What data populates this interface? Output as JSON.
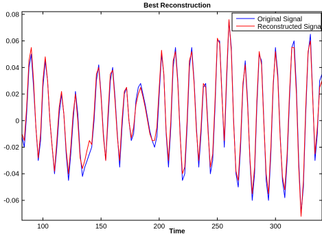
{
  "chart_data": {
    "type": "line",
    "title": "Best Reconstruction",
    "xlabel": "Time",
    "ylabel": "",
    "xlim": [
      82,
      340
    ],
    "ylim": [
      -0.075,
      0.082
    ],
    "xticks": [
      100,
      150,
      200,
      250,
      300
    ],
    "yticks": [
      -0.06,
      -0.04,
      -0.02,
      0,
      0.02,
      0.04,
      0.06,
      0.08
    ],
    "ytick_labels": [
      "-0.06",
      "-0.04",
      "-0.02",
      "0",
      "0.02",
      "0.04",
      "0.06",
      "0.08"
    ],
    "xtick_labels": [
      "100",
      "150",
      "200",
      "250",
      "300"
    ],
    "grid": false,
    "legend_position": "top-right",
    "series": [
      {
        "name": "Original Signal",
        "color": "#0000ff",
        "points": [
          [
            82,
            -0.012
          ],
          [
            84,
            -0.02
          ],
          [
            86,
            0.005
          ],
          [
            88,
            0.04
          ],
          [
            90,
            0.05
          ],
          [
            92,
            0.025
          ],
          [
            94,
            -0.005
          ],
          [
            96,
            -0.03
          ],
          [
            98,
            -0.015
          ],
          [
            100,
            0.025
          ],
          [
            102,
            0.045
          ],
          [
            104,
            0.03
          ],
          [
            106,
            0.0
          ],
          [
            108,
            -0.02
          ],
          [
            110,
            -0.04
          ],
          [
            112,
            -0.02
          ],
          [
            114,
            0.005
          ],
          [
            116,
            0.02
          ],
          [
            118,
            0.005
          ],
          [
            120,
            -0.025
          ],
          [
            122,
            -0.045
          ],
          [
            124,
            -0.025
          ],
          [
            126,
            0.0
          ],
          [
            128,
            0.022
          ],
          [
            130,
            0.005
          ],
          [
            132,
            -0.025
          ],
          [
            134,
            -0.042
          ],
          [
            136,
            -0.035
          ],
          [
            138,
            -0.03
          ],
          [
            140,
            -0.025
          ],
          [
            142,
            -0.02
          ],
          [
            144,
            0.0
          ],
          [
            146,
            0.03
          ],
          [
            148,
            0.042
          ],
          [
            150,
            0.02
          ],
          [
            152,
            -0.01
          ],
          [
            154,
            -0.03
          ],
          [
            156,
            0.0
          ],
          [
            158,
            0.03
          ],
          [
            160,
            0.04
          ],
          [
            162,
            0.018
          ],
          [
            164,
            -0.01
          ],
          [
            166,
            -0.035
          ],
          [
            168,
            -0.005
          ],
          [
            170,
            0.02
          ],
          [
            172,
            0.025
          ],
          [
            174,
            0.0
          ],
          [
            176,
            -0.015
          ],
          [
            178,
            -0.01
          ],
          [
            180,
            0.015
          ],
          [
            182,
            0.025
          ],
          [
            184,
            0.028
          ],
          [
            186,
            0.02
          ],
          [
            188,
            0.012
          ],
          [
            190,
            0.002
          ],
          [
            192,
            -0.008
          ],
          [
            194,
            -0.015
          ],
          [
            196,
            -0.02
          ],
          [
            198,
            -0.012
          ],
          [
            200,
            0.02
          ],
          [
            202,
            0.05
          ],
          [
            204,
            0.035
          ],
          [
            206,
            -0.01
          ],
          [
            208,
            -0.035
          ],
          [
            210,
            -0.005
          ],
          [
            212,
            0.04
          ],
          [
            214,
            0.055
          ],
          [
            216,
            0.03
          ],
          [
            218,
            -0.01
          ],
          [
            220,
            -0.045
          ],
          [
            222,
            -0.04
          ],
          [
            224,
            -0.005
          ],
          [
            226,
            0.04
          ],
          [
            228,
            0.055
          ],
          [
            230,
            0.03
          ],
          [
            232,
            -0.005
          ],
          [
            234,
            -0.035
          ],
          [
            236,
            -0.01
          ],
          [
            238,
            0.025
          ],
          [
            240,
            0.028
          ],
          [
            242,
            -0.005
          ],
          [
            244,
            -0.04
          ],
          [
            246,
            -0.03
          ],
          [
            248,
            0.01
          ],
          [
            250,
            0.06
          ],
          [
            252,
            0.06
          ],
          [
            254,
            0.02
          ],
          [
            256,
            -0.02
          ],
          [
            258,
            0.03
          ],
          [
            260,
            0.075
          ],
          [
            262,
            0.055
          ],
          [
            264,
            0.0
          ],
          [
            266,
            -0.04
          ],
          [
            268,
            -0.05
          ],
          [
            270,
            -0.02
          ],
          [
            272,
            0.025
          ],
          [
            274,
            0.045
          ],
          [
            276,
            0.015
          ],
          [
            278,
            -0.03
          ],
          [
            280,
            -0.06
          ],
          [
            282,
            -0.04
          ],
          [
            284,
            0.01
          ],
          [
            286,
            0.05
          ],
          [
            288,
            0.045
          ],
          [
            290,
            0.0
          ],
          [
            292,
            -0.045
          ],
          [
            294,
            -0.06
          ],
          [
            296,
            -0.025
          ],
          [
            298,
            0.025
          ],
          [
            300,
            0.055
          ],
          [
            302,
            0.035
          ],
          [
            304,
            -0.01
          ],
          [
            306,
            -0.045
          ],
          [
            308,
            -0.058
          ],
          [
            310,
            -0.03
          ],
          [
            312,
            0.015
          ],
          [
            314,
            0.055
          ],
          [
            316,
            0.06
          ],
          [
            318,
            0.025
          ],
          [
            320,
            -0.03
          ],
          [
            322,
            -0.07
          ],
          [
            324,
            -0.05
          ],
          [
            326,
            0.005
          ],
          [
            328,
            0.05
          ],
          [
            330,
            0.065
          ],
          [
            332,
            0.02
          ],
          [
            334,
            -0.03
          ],
          [
            336,
            -0.01
          ],
          [
            338,
            0.03
          ],
          [
            340,
            0.035
          ]
        ]
      },
      {
        "name": "Reconstructed Signal",
        "color": "#ff0000",
        "points": [
          [
            82,
            -0.01
          ],
          [
            84,
            -0.015
          ],
          [
            86,
            0.01
          ],
          [
            88,
            0.045
          ],
          [
            90,
            0.055
          ],
          [
            92,
            0.03
          ],
          [
            94,
            -0.005
          ],
          [
            96,
            -0.028
          ],
          [
            98,
            -0.01
          ],
          [
            100,
            0.03
          ],
          [
            102,
            0.048
          ],
          [
            104,
            0.03
          ],
          [
            106,
            0.0
          ],
          [
            108,
            -0.02
          ],
          [
            110,
            -0.038
          ],
          [
            112,
            -0.015
          ],
          [
            114,
            0.01
          ],
          [
            116,
            0.022
          ],
          [
            118,
            0.005
          ],
          [
            120,
            -0.022
          ],
          [
            122,
            -0.04
          ],
          [
            124,
            -0.02
          ],
          [
            126,
            0.005
          ],
          [
            128,
            0.02
          ],
          [
            130,
            0.0
          ],
          [
            132,
            -0.028
          ],
          [
            134,
            -0.036
          ],
          [
            136,
            -0.03
          ],
          [
            138,
            -0.022
          ],
          [
            140,
            -0.015
          ],
          [
            142,
            -0.018
          ],
          [
            144,
            0.005
          ],
          [
            146,
            0.035
          ],
          [
            148,
            0.04
          ],
          [
            150,
            0.018
          ],
          [
            152,
            -0.012
          ],
          [
            154,
            -0.03
          ],
          [
            156,
            0.005
          ],
          [
            158,
            0.035
          ],
          [
            160,
            0.038
          ],
          [
            162,
            0.015
          ],
          [
            164,
            -0.012
          ],
          [
            166,
            -0.03
          ],
          [
            168,
            0.0
          ],
          [
            170,
            0.022
          ],
          [
            172,
            0.025
          ],
          [
            174,
            0.0
          ],
          [
            176,
            -0.013
          ],
          [
            178,
            -0.005
          ],
          [
            180,
            0.012
          ],
          [
            182,
            0.02
          ],
          [
            184,
            0.025
          ],
          [
            186,
            0.018
          ],
          [
            188,
            0.01
          ],
          [
            190,
            0.0
          ],
          [
            192,
            -0.01
          ],
          [
            194,
            -0.015
          ],
          [
            196,
            -0.015
          ],
          [
            198,
            -0.005
          ],
          [
            200,
            0.025
          ],
          [
            202,
            0.053
          ],
          [
            204,
            0.035
          ],
          [
            206,
            -0.008
          ],
          [
            208,
            -0.03
          ],
          [
            210,
            0.0
          ],
          [
            212,
            0.045
          ],
          [
            214,
            0.052
          ],
          [
            216,
            0.028
          ],
          [
            218,
            -0.012
          ],
          [
            220,
            -0.04
          ],
          [
            222,
            -0.035
          ],
          [
            224,
            0.0
          ],
          [
            226,
            0.045
          ],
          [
            228,
            0.052
          ],
          [
            230,
            0.028
          ],
          [
            232,
            -0.008
          ],
          [
            234,
            -0.03
          ],
          [
            236,
            -0.005
          ],
          [
            238,
            0.028
          ],
          [
            240,
            0.025
          ],
          [
            242,
            -0.008
          ],
          [
            244,
            -0.035
          ],
          [
            246,
            -0.025
          ],
          [
            248,
            0.015
          ],
          [
            250,
            0.062
          ],
          [
            252,
            0.058
          ],
          [
            254,
            0.018
          ],
          [
            256,
            -0.015
          ],
          [
            258,
            0.035
          ],
          [
            260,
            0.076
          ],
          [
            262,
            0.052
          ],
          [
            264,
            -0.002
          ],
          [
            266,
            -0.038
          ],
          [
            268,
            -0.045
          ],
          [
            270,
            -0.015
          ],
          [
            272,
            0.028
          ],
          [
            274,
            0.042
          ],
          [
            276,
            0.012
          ],
          [
            278,
            -0.028
          ],
          [
            280,
            -0.055
          ],
          [
            282,
            -0.035
          ],
          [
            284,
            0.015
          ],
          [
            286,
            0.052
          ],
          [
            288,
            0.042
          ],
          [
            290,
            -0.002
          ],
          [
            292,
            -0.04
          ],
          [
            294,
            -0.055
          ],
          [
            296,
            -0.02
          ],
          [
            298,
            0.028
          ],
          [
            300,
            0.052
          ],
          [
            302,
            0.032
          ],
          [
            304,
            -0.012
          ],
          [
            306,
            -0.042
          ],
          [
            308,
            -0.052
          ],
          [
            310,
            -0.025
          ],
          [
            312,
            0.02
          ],
          [
            314,
            0.055
          ],
          [
            316,
            0.055
          ],
          [
            318,
            0.02
          ],
          [
            320,
            -0.035
          ],
          [
            322,
            -0.072
          ],
          [
            324,
            -0.045
          ],
          [
            326,
            0.01
          ],
          [
            328,
            0.052
          ],
          [
            330,
            0.06
          ],
          [
            332,
            0.018
          ],
          [
            334,
            -0.025
          ],
          [
            336,
            -0.005
          ],
          [
            338,
            0.025
          ],
          [
            340,
            0.03
          ]
        ]
      }
    ]
  }
}
